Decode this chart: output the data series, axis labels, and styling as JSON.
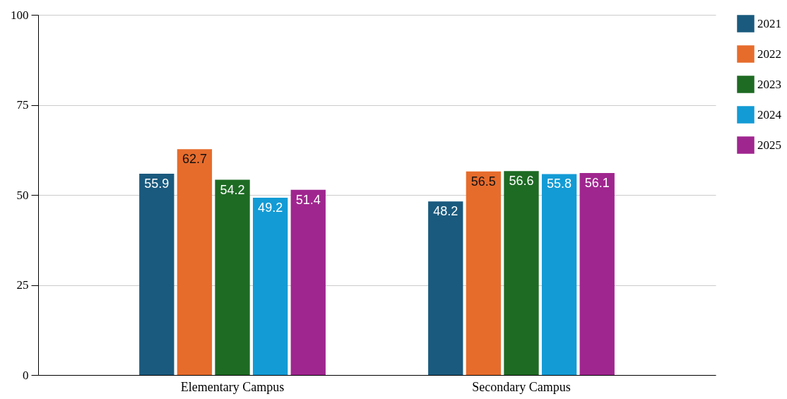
{
  "chart_data": {
    "type": "bar",
    "categories": [
      "Elementary Campus",
      "Secondary Campus"
    ],
    "series": [
      {
        "name": "2021",
        "color": "#1a5a7e",
        "values": [
          55.9,
          48.2
        ]
      },
      {
        "name": "2022",
        "color": "#e66c2c",
        "values": [
          62.7,
          56.5
        ]
      },
      {
        "name": "2023",
        "color": "#1e6b24",
        "values": [
          54.2,
          56.6
        ]
      },
      {
        "name": "2024",
        "color": "#139bd5",
        "values": [
          49.2,
          55.8
        ]
      },
      {
        "name": "2025",
        "color": "#a0268f",
        "values": [
          51.4,
          56.1
        ]
      }
    ],
    "ylim": [
      0,
      100
    ],
    "yticks": [
      0,
      25,
      50,
      75,
      100
    ],
    "grid": "y",
    "legend": "right",
    "data_labels": true
  }
}
